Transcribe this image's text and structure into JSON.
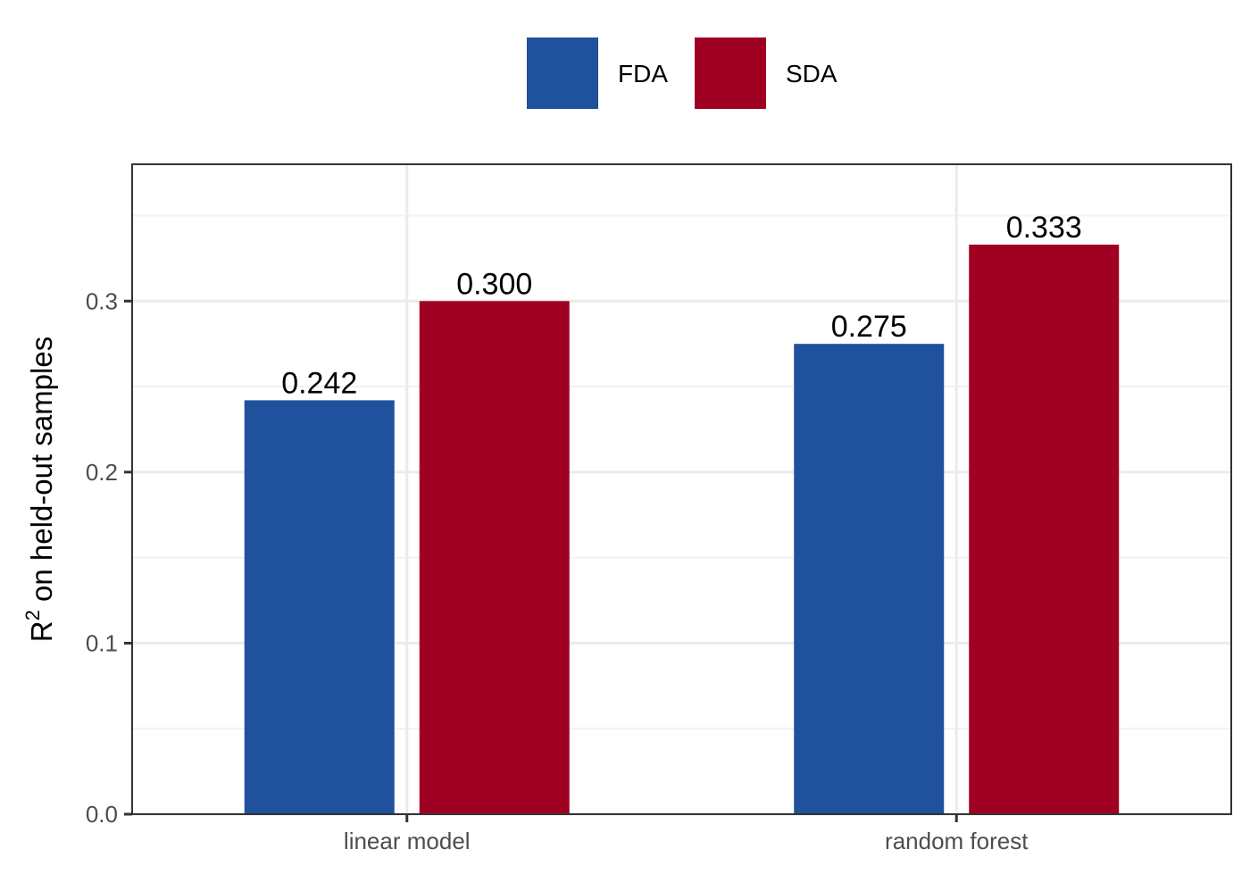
{
  "chart_data": {
    "type": "bar",
    "categories": [
      "linear model",
      "random forest"
    ],
    "series": [
      {
        "name": "FDA",
        "color": "#1f519c",
        "values": [
          0.242,
          0.275
        ],
        "labels": [
          "0.242",
          "0.275"
        ]
      },
      {
        "name": "SDA",
        "color": "#a00022",
        "values": [
          0.3,
          0.333
        ],
        "labels": [
          "0.300",
          "0.333"
        ]
      }
    ],
    "ylabel_main": "R",
    "ylabel_sup": "2",
    "ylabel_rest": " on held-out samples",
    "xlabel": "",
    "ylim": [
      0,
      0.38
    ],
    "yticks": [
      0.0,
      0.1,
      0.2,
      0.3
    ],
    "ytick_labels": [
      "0.0",
      "0.1",
      "0.2",
      "0.3"
    ],
    "grid": true,
    "legend_position": "top"
  }
}
